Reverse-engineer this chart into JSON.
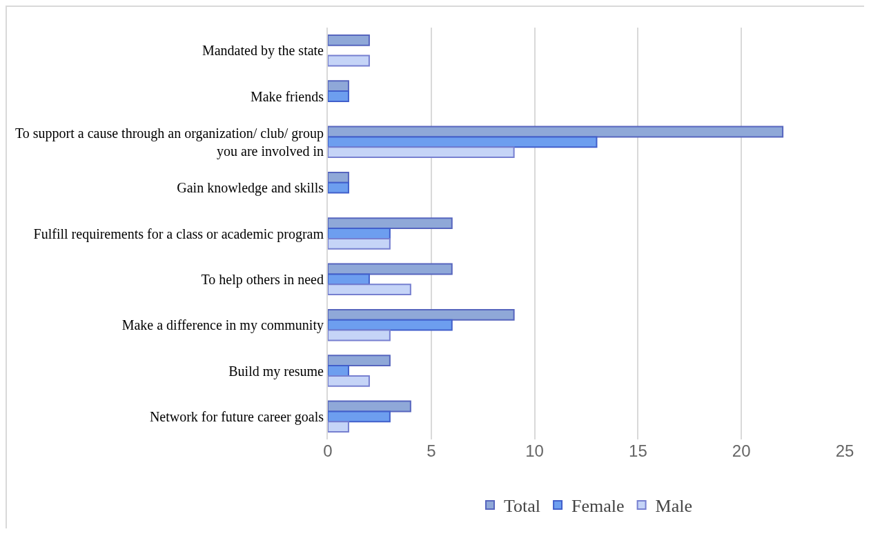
{
  "chart_data": {
    "type": "bar",
    "orientation": "horizontal",
    "categories": [
      "Mandated by the state",
      "Make friends",
      "To support a cause through an organization/ club/ group you are involved in",
      "Gain knowledge and skills",
      "Fulfill requirements for a class or academic program",
      "To help others in need",
      "Make a difference in my community",
      "Build my resume",
      "Network for future career goals"
    ],
    "series": [
      {
        "name": "Total",
        "color": "#8fa8d8",
        "values": [
          2,
          1,
          22,
          1,
          6,
          6,
          9,
          3,
          4
        ]
      },
      {
        "name": "Female",
        "color": "#6d9eef",
        "values": [
          null,
          1,
          13,
          1,
          3,
          2,
          6,
          1,
          3
        ]
      },
      {
        "name": "Male",
        "color": "#c5d4f7",
        "values": [
          2,
          null,
          9,
          null,
          3,
          4,
          3,
          2,
          1
        ]
      }
    ],
    "xlim": [
      0,
      25
    ],
    "xticks": [
      0,
      5,
      10,
      15,
      20,
      25
    ],
    "grid": "x",
    "legend": "bottom"
  }
}
